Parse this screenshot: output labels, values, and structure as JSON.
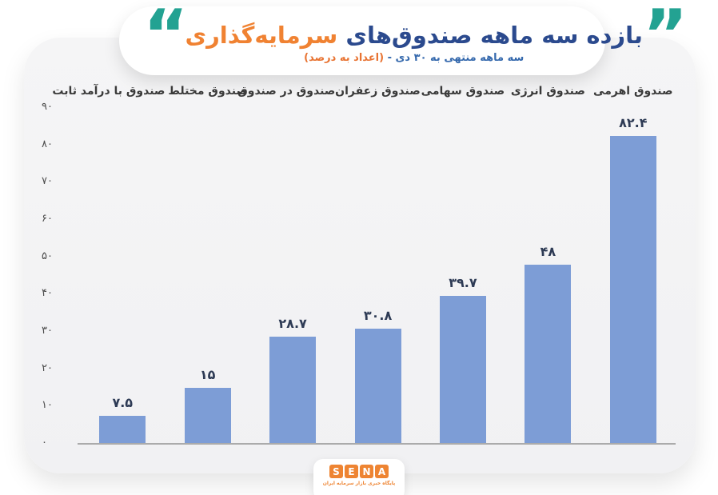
{
  "header": {
    "quote_open": "“",
    "quote_close": "”",
    "title_main": "بازده سه ماهه صندوق‌های",
    "title_accent": "سرمایه‌گذاری",
    "subtitle_main": "سه ماهه منتهی به ۳۰ دی -",
    "subtitle_accent": "(اعداد به درصد)"
  },
  "chart_data": {
    "type": "bar",
    "title": "بازده سه ماهه صندوق‌های سرمایه‌گذاری",
    "subtitle": "سه ماهه منتهی به ۳۰ دی - (اعداد به درصد)",
    "direction": "rtl",
    "categories": [
      "صندوق اهرمی",
      "صندوق انرژی",
      "صندوق سهامی",
      "صندوق زعفران",
      "صندوق در صندوق",
      "صندوق مختلط",
      "صندوق با درآمد ثابت"
    ],
    "values": [
      82.4,
      48,
      39.7,
      30.8,
      28.7,
      15,
      7.5
    ],
    "value_labels": [
      "۸۲.۴",
      "۴۸",
      "۳۹.۷",
      "۳۰.۸",
      "۲۸.۷",
      "۱۵",
      "۷.۵"
    ],
    "xlabel": "",
    "ylabel": "",
    "ylim": [
      0,
      90
    ],
    "y_ticks": {
      "values": [
        90,
        80,
        70,
        60,
        50,
        40,
        30,
        20,
        10,
        0
      ],
      "labels": [
        "۹۰",
        "۸۰",
        "۷۰",
        "۶۰",
        "۵۰",
        "۴۰",
        "۳۰",
        "۲۰",
        "۱۰",
        "۰"
      ]
    },
    "grid": false,
    "legend": false,
    "bar_color": "#7d9dd6",
    "unit": "percent"
  },
  "footer": {
    "logo_letters": [
      "S",
      "E",
      "N",
      "A"
    ],
    "logo_tagline": "پایگاه خبری بازار سرمایه ایران"
  },
  "colors": {
    "title_blue": "#2b4a8e",
    "title_orange": "#f08232",
    "subtitle_blue": "#3569ad",
    "subtitle_orange": "#e87332",
    "quote_teal": "#23a292",
    "bar_blue": "#7d9dd6",
    "logo_orange": "#ee8432",
    "value_label": "#2e3b55"
  }
}
